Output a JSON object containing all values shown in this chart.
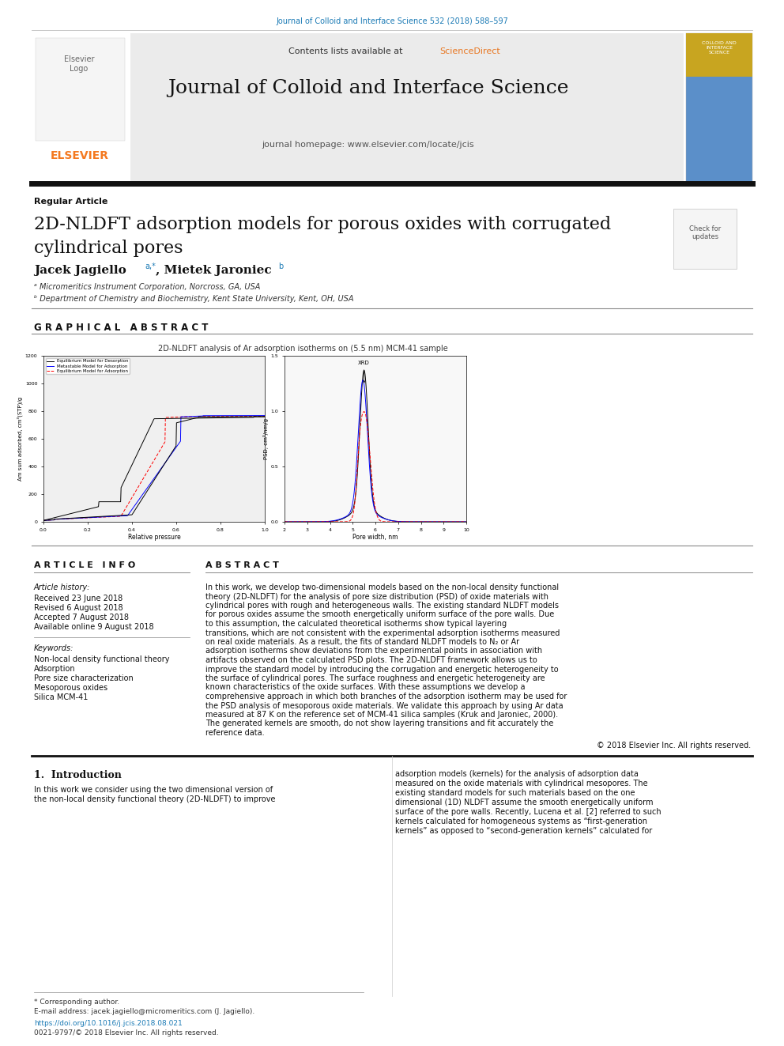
{
  "page_width": 9.92,
  "page_height": 13.23,
  "background": "#ffffff",
  "top_journal_text": "Journal of Colloid and Interface Science 532 (2018) 588–597",
  "top_journal_color": "#1a7ab5",
  "header_bg": "#e8e8e8",
  "contents_text": "Contents lists available at ",
  "sciencedirect_text": "ScienceDirect",
  "sciencedirect_color": "#e87722",
  "journal_title": "Journal of Colloid and Interface Science",
  "homepage_text": "journal homepage: www.elsevier.com/locate/jcis",
  "elsevier_color": "#f47920",
  "article_type": "Regular Article",
  "paper_title_line1": "2D-NLDFT adsorption models for porous oxides with corrugated",
  "paper_title_line2": "cylindrical pores",
  "author1_name": "Jacek Jagiello",
  "author1_super": "a,*",
  "author2_name": ", Mietek Jaroniec",
  "author2_super": "b",
  "affil1": "ᵃ Micromeritics Instrument Corporation, Norcross, GA, USA",
  "affil2": "ᵇ Department of Chemistry and Biochemistry, Kent State University, Kent, OH, USA",
  "graphical_abstract_title": "G R A P H I C A L   A B S T R A C T",
  "graph_subtitle": "2D-NLDFT analysis of Ar adsorption isotherms on (5.5 nm) MCM-41 sample",
  "legend1": "Equilibrium Model for Desorption",
  "legend2": "Metastable Model for Adsorption",
  "legend3": "Equilibrium Model for Adsorption",
  "left_ylabel": "Am sum adsorbed, cm³(STP)/g",
  "left_xlabel": "Relative pressure",
  "right_ylabel": "PSD, cm³/nm/g",
  "right_xlabel": "Pore width, nm",
  "xrd_label": "XRD",
  "article_info_title": "A R T I C L E   I N F O",
  "article_history_title": "Article history:",
  "received": "Received 23 June 2018",
  "revised": "Revised 6 August 2018",
  "accepted": "Accepted 7 August 2018",
  "available": "Available online 9 August 2018",
  "keywords_title": "Keywords:",
  "keyword1": "Non-local density functional theory",
  "keyword2": "Adsorption",
  "keyword3": "Pore size characterization",
  "keyword4": "Mesoporous oxides",
  "keyword5": "Silica MCM-41",
  "abstract_title": "A B S T R A C T",
  "abstract_text": "In this work, we develop two-dimensional models based on the non-local density functional theory (2D-NLDFT) for the analysis of pore size distribution (PSD) of oxide materials with cylindrical pores with rough and heterogeneous walls. The existing standard NLDFT models for porous oxides assume the smooth energetically uniform surface of the pore walls. Due to this assumption, the calculated theoretical isotherms show typical layering transitions, which are not consistent with the experimental adsorption isotherms measured on real oxide materials. As a result, the fits of standard NLDFT models to N₂ or Ar adsorption isotherms show deviations from the experimental points in association with artifacts observed on the calculated PSD plots. The 2D-NLDFT framework allows us to improve the standard model by introducing the corrugation and energetic heterogeneity to the surface of cylindrical pores. The surface roughness and energetic heterogeneity are known characteristics of the oxide surfaces. With these assumptions we develop a comprehensive approach in which both branches of the adsorption isotherm may be used for the PSD analysis of mesoporous oxide materials. We validate this approach by using Ar data measured at 87 K on the reference set of MCM-41 silica samples (Kruk and Jaroniec, 2000). The generated kernels are smooth, do not show layering transitions and fit accurately the reference data.",
  "copyright_text": "© 2018 Elsevier Inc. All rights reserved.",
  "intro_title": "1.  Introduction",
  "intro_left": "In this work we consider using the two dimensional version of\nthe non-local density functional theory (2D-NLDFT) to improve",
  "intro_right": "adsorption models (kernels) for the analysis of adsorption data\nmeasured on the oxide materials with cylindrical mesopores. The\nexisting standard models for such materials based on the one\ndimensional (1D) NLDFT assume the smooth energetically uniform\nsurface of the pore walls. Recently, Lucena et al. [2] referred to such\nkernels calculated for homogeneous systems as “first-generation\nkernels” as opposed to “second-generation kernels” calculated for",
  "doi_text": "https://doi.org/10.1016/j.jcis.2018.08.021",
  "issn_text": "0021-9797/© 2018 Elsevier Inc. All rights reserved.",
  "corresponding_note": "* Corresponding author.",
  "email_text": "E-mail address: jacek.jagiello@micromeritics.com (J. Jagiello)."
}
